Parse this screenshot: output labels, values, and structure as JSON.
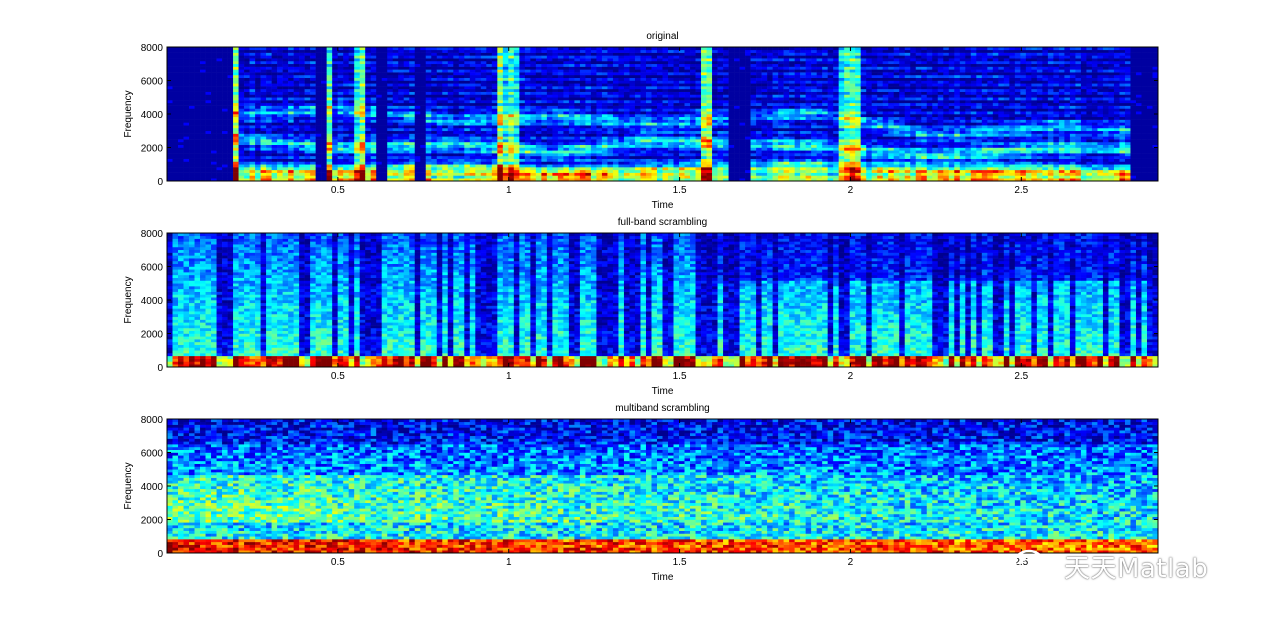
{
  "watermark": {
    "text": "天天Matlab",
    "icon": "wechat-icon"
  },
  "colormap": [
    "#00008f",
    "#0000ff",
    "#0080ff",
    "#00ffff",
    "#80ff80",
    "#ffff00",
    "#ff8000",
    "#ff0000",
    "#800000"
  ],
  "chart_data": [
    {
      "type": "heatmap",
      "kind": "spectrogram",
      "title": "original",
      "xlabel": "Time",
      "ylabel": "Frequency",
      "xlim": [
        0.0,
        2.9
      ],
      "ylim": [
        0,
        8000
      ],
      "xticks": [
        0.5,
        1,
        1.5,
        2,
        2.5
      ],
      "xticklabels": [
        "0.5",
        "1",
        "1.5",
        "2",
        "2.5"
      ],
      "yticks": [
        0,
        2000,
        4000,
        6000,
        8000
      ],
      "yticklabels": [
        "0",
        "2000",
        "4000",
        "6000",
        "8000"
      ],
      "pattern": "speech",
      "silences": [
        [
          0.0,
          0.19
        ],
        [
          0.44,
          0.46
        ],
        [
          0.61,
          0.64
        ],
        [
          0.73,
          0.76
        ],
        [
          1.65,
          1.7
        ],
        [
          2.82,
          2.9
        ]
      ],
      "onsets": [
        0.19,
        0.46,
        0.57,
        0.98,
        1.02,
        1.58,
        1.99,
        2.02
      ],
      "formants": [
        [
          0.2,
          700,
          2500,
          4000
        ],
        [
          0.5,
          600,
          2000,
          4300
        ],
        [
          0.85,
          800,
          2200,
          3600
        ],
        [
          1.15,
          500,
          1700,
          3900
        ],
        [
          1.4,
          700,
          2400,
          3400
        ],
        [
          1.9,
          900,
          2100,
          4100
        ],
        [
          2.25,
          600,
          1500,
          2700
        ],
        [
          2.6,
          700,
          2000,
          3300
        ],
        [
          2.8,
          500,
          1900,
          3000
        ]
      ]
    },
    {
      "type": "heatmap",
      "kind": "spectrogram",
      "title": "full-band scrambling",
      "xlabel": "Time",
      "ylabel": "Frequency",
      "xlim": [
        0.0,
        2.9
      ],
      "ylim": [
        0,
        8000
      ],
      "xticks": [
        0.5,
        1,
        1.5,
        2,
        2.5
      ],
      "xticklabels": [
        "0.5",
        "1",
        "1.5",
        "2",
        "2.5"
      ],
      "yticks": [
        0,
        2000,
        4000,
        6000,
        8000
      ],
      "yticklabels": [
        "0",
        "2000",
        "4000",
        "6000",
        "8000"
      ],
      "pattern": "fullband"
    },
    {
      "type": "heatmap",
      "kind": "spectrogram",
      "title": "multiband scrambling",
      "xlabel": "Time",
      "ylabel": "Frequency",
      "xlim": [
        0.0,
        2.9
      ],
      "ylim": [
        0,
        8000
      ],
      "xticks": [
        0.5,
        1,
        1.5,
        2,
        2.5
      ],
      "xticklabels": [
        "0.5",
        "1",
        "1.5",
        "2",
        "2.5"
      ],
      "yticks": [
        0,
        2000,
        4000,
        6000,
        8000
      ],
      "yticklabels": [
        "0",
        "2000",
        "4000",
        "6000",
        "8000"
      ],
      "pattern": "multiband"
    }
  ]
}
